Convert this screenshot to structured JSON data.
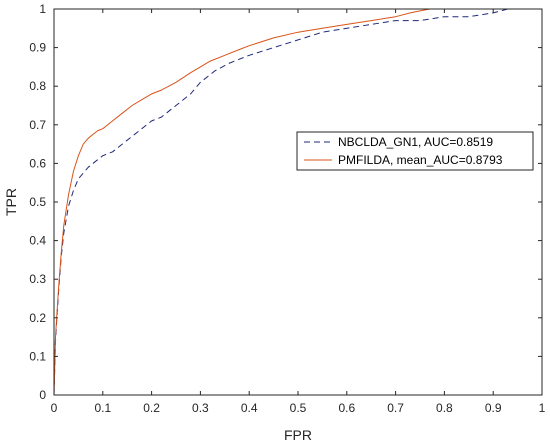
{
  "chart_data": {
    "type": "line",
    "title": "",
    "xlabel": "FPR",
    "ylabel": "TPR",
    "xlim": [
      0,
      1
    ],
    "ylim": [
      0,
      1
    ],
    "xticks": [
      "0",
      "0.1",
      "0.2",
      "0.3",
      "0.4",
      "0.5",
      "0.6",
      "0.7",
      "0.8",
      "0.9",
      "1"
    ],
    "yticks": [
      "0",
      "0.1",
      "0.2",
      "0.3",
      "0.4",
      "0.5",
      "0.6",
      "0.7",
      "0.8",
      "0.9",
      "1"
    ],
    "grid": false,
    "legend_position": "right",
    "series": [
      {
        "name": "NBCLDA_GN1, AUC=0.8519",
        "style": "dashed",
        "color": "#1f2a7a",
        "x": [
          0,
          0.003,
          0.006,
          0.01,
          0.015,
          0.02,
          0.03,
          0.04,
          0.05,
          0.07,
          0.09,
          0.1,
          0.12,
          0.15,
          0.18,
          0.2,
          0.22,
          0.25,
          0.28,
          0.3,
          0.33,
          0.36,
          0.4,
          0.45,
          0.5,
          0.55,
          0.6,
          0.65,
          0.7,
          0.75,
          0.8,
          0.85,
          0.9,
          0.93,
          0.96,
          1
        ],
        "y": [
          0,
          0.14,
          0.2,
          0.28,
          0.36,
          0.42,
          0.49,
          0.53,
          0.56,
          0.59,
          0.61,
          0.62,
          0.63,
          0.66,
          0.69,
          0.71,
          0.72,
          0.75,
          0.78,
          0.81,
          0.84,
          0.86,
          0.88,
          0.9,
          0.92,
          0.94,
          0.95,
          0.96,
          0.97,
          0.97,
          0.98,
          0.98,
          0.99,
          1,
          1,
          1
        ]
      },
      {
        "name": "PMFILDA, mean_AUC=0.8793",
        "style": "solid",
        "color": "#d95319",
        "x": [
          0,
          0.003,
          0.006,
          0.01,
          0.015,
          0.02,
          0.03,
          0.04,
          0.05,
          0.06,
          0.07,
          0.08,
          0.09,
          0.1,
          0.12,
          0.14,
          0.16,
          0.18,
          0.2,
          0.22,
          0.25,
          0.28,
          0.3,
          0.32,
          0.35,
          0.38,
          0.4,
          0.45,
          0.5,
          0.55,
          0.6,
          0.65,
          0.7,
          0.73,
          0.75,
          0.77,
          0.8,
          0.85,
          0.9,
          0.95,
          1
        ],
        "y": [
          0,
          0.15,
          0.21,
          0.29,
          0.37,
          0.44,
          0.52,
          0.58,
          0.62,
          0.65,
          0.665,
          0.675,
          0.685,
          0.69,
          0.71,
          0.73,
          0.75,
          0.765,
          0.78,
          0.79,
          0.81,
          0.835,
          0.85,
          0.865,
          0.88,
          0.895,
          0.905,
          0.925,
          0.94,
          0.95,
          0.96,
          0.97,
          0.98,
          0.99,
          0.995,
          1,
          1,
          1,
          1,
          1,
          1
        ]
      }
    ]
  }
}
